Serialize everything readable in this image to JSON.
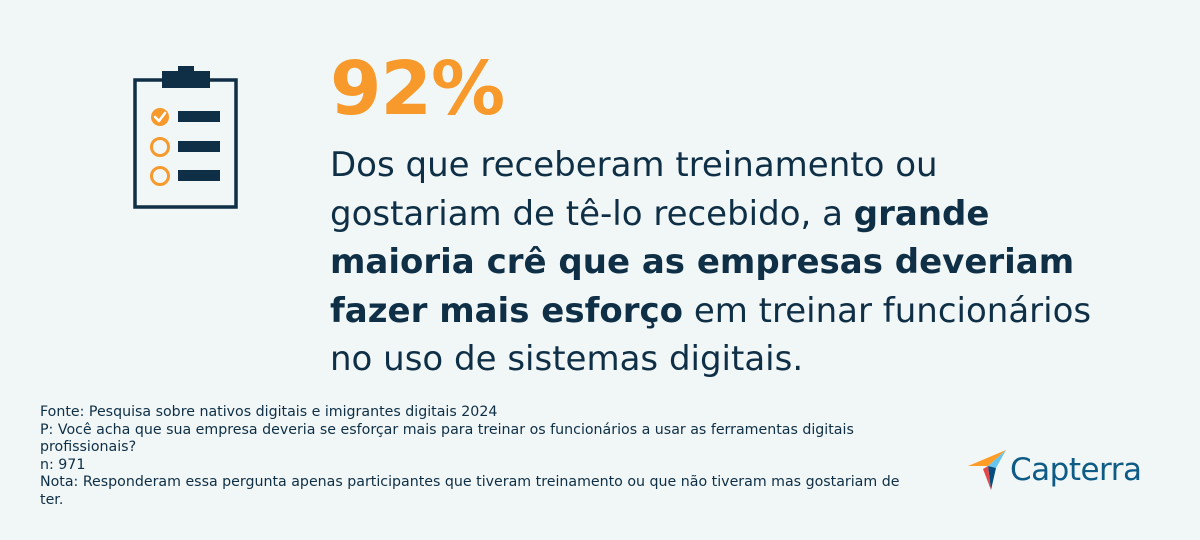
{
  "headline": {
    "stat": "92%",
    "text_part1": "Dos que receberam treinamento ou gostariam de tê-lo recebido, a ",
    "text_bold": "grande maioria crê que as empresas deveriam fazer mais esforço",
    "text_part2": " em treinar funcionários no uso de sistemas digitais."
  },
  "footnotes": {
    "source": "Fonte: Pesquisa sobre nativos digitais e imigrantes digitais 2024",
    "question": "P: Você acha que sua empresa deveria se esforçar mais para treinar os funcionários a usar as ferramentas digitais profissionais?",
    "sample": "n: 971",
    "note": "Nota: Responderam essa pergunta apenas participantes que tiveram treinamento ou que não tiveram mas gostariam de ter."
  },
  "brand": {
    "name": "Capterra"
  },
  "colors": {
    "background": "#f1f6f7",
    "accent": "#f79a2b",
    "text": "#0e2f45"
  },
  "icons": {
    "illustration": "clipboard-checklist-icon",
    "logo": "capterra-arrow-icon"
  }
}
